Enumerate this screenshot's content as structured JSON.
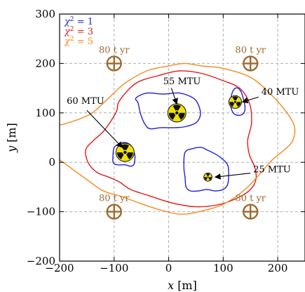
{
  "chart_data": {
    "type": "scatter",
    "xlabel_var": "x",
    "xlabel_unit": "[m]",
    "ylabel_var": "y",
    "ylabel_unit": "[m]",
    "xlim": [
      -200,
      250
    ],
    "ylim": [
      -200,
      300
    ],
    "xticks": [
      -200,
      -100,
      0,
      100,
      200
    ],
    "yticks": [
      -200,
      -100,
      0,
      100,
      200,
      300
    ],
    "xtick_labels": [
      "−200",
      "−100",
      "0",
      "100",
      "200"
    ],
    "ytick_labels": [
      "−200",
      "−100",
      "0",
      "100",
      "200",
      "300"
    ],
    "grid": true,
    "legend": {
      "placement": "top-left",
      "entries": [
        {
          "sym": "χ",
          "exp": "2",
          "rest": " = 1",
          "color": "#1f1fd6"
        },
        {
          "sym": "χ",
          "exp": "2",
          "rest": " = 3",
          "color": "#e01b1b"
        },
        {
          "sym": "χ",
          "exp": "2",
          "rest": " = 5",
          "color": "#f28a1c"
        }
      ]
    },
    "series": [
      {
        "name": "χ² = 1",
        "color": "#1f1fd6",
        "contours": [
          [
            [
              -60,
              130
            ],
            [
              -40,
              140
            ],
            [
              -10,
              138
            ],
            [
              20,
              140
            ],
            [
              45,
              130
            ],
            [
              55,
              115
            ],
            [
              58,
              95
            ],
            [
              50,
              80
            ],
            [
              30,
              72
            ],
            [
              10,
              70
            ],
            [
              -15,
              70
            ],
            [
              -35,
              68
            ],
            [
              -45,
              80
            ],
            [
              -52,
              100
            ],
            [
              -56,
              120
            ],
            [
              -60,
              130
            ]
          ],
          [
            [
              -100,
              30
            ],
            [
              -90,
              38
            ],
            [
              -80,
              40
            ],
            [
              -70,
              35
            ],
            [
              -65,
              25
            ],
            [
              -62,
              15
            ],
            [
              -62,
              5
            ],
            [
              -64,
              -5
            ],
            [
              -70,
              -8
            ],
            [
              -80,
              -5
            ],
            [
              -95,
              -5
            ],
            [
              -102,
              0
            ],
            [
              -102,
              15
            ],
            [
              -100,
              30
            ]
          ],
          [
            [
              115,
              135
            ],
            [
              120,
              148
            ],
            [
              127,
              150
            ],
            [
              133,
              142
            ],
            [
              137,
              128
            ],
            [
              140,
              112
            ],
            [
              138,
              100
            ],
            [
              130,
              95
            ],
            [
              120,
              98
            ],
            [
              115,
              108
            ],
            [
              114,
              120
            ],
            [
              115,
              135
            ]
          ],
          [
            [
              30,
              20
            ],
            [
              45,
              28
            ],
            [
              60,
              30
            ],
            [
              70,
              25
            ],
            [
              80,
              20
            ],
            [
              95,
              10
            ],
            [
              108,
              -5
            ],
            [
              110,
              -25
            ],
            [
              108,
              -45
            ],
            [
              100,
              -55
            ],
            [
              85,
              -58
            ],
            [
              70,
              -55
            ],
            [
              55,
              -58
            ],
            [
              40,
              -58
            ],
            [
              32,
              -50
            ],
            [
              30,
              -30
            ],
            [
              28,
              -10
            ],
            [
              30,
              20
            ]
          ]
        ]
      },
      {
        "name": "χ² = 3",
        "color": "#e01b1b",
        "contours": [
          [
            [
              -90,
              125
            ],
            [
              -60,
              160
            ],
            [
              -20,
              175
            ],
            [
              20,
              185
            ],
            [
              60,
              180
            ],
            [
              100,
              165
            ],
            [
              130,
              150
            ],
            [
              148,
              120
            ],
            [
              152,
              80
            ],
            [
              145,
              45
            ],
            [
              148,
              15
            ],
            [
              158,
              -10
            ],
            [
              160,
              -35
            ],
            [
              150,
              -55
            ],
            [
              130,
              -70
            ],
            [
              95,
              -85
            ],
            [
              50,
              -90
            ],
            [
              5,
              -82
            ],
            [
              -35,
              -68
            ],
            [
              -70,
              -55
            ],
            [
              -90,
              -40
            ],
            [
              -110,
              -30
            ],
            [
              -132,
              -20
            ],
            [
              -148,
              0
            ],
            [
              -152,
              25
            ],
            [
              -140,
              42
            ],
            [
              -120,
              62
            ],
            [
              -105,
              85
            ],
            [
              -95,
              105
            ],
            [
              -90,
              125
            ]
          ]
        ]
      },
      {
        "name": "χ² = 5",
        "color": "#f28a1c",
        "contours": [
          [
            [
              -200,
              75
            ],
            [
              -170,
              85
            ],
            [
              -140,
              100
            ],
            [
              -110,
              130
            ],
            [
              -80,
              160
            ],
            [
              -40,
              185
            ],
            [
              0,
              195
            ],
            [
              30,
              200
            ],
            [
              60,
              195
            ],
            [
              100,
              190
            ],
            [
              150,
              172
            ],
            [
              185,
              140
            ],
            [
              210,
              110
            ],
            [
              230,
              75
            ],
            [
              228,
              45
            ],
            [
              212,
              25
            ],
            [
              190,
              5
            ],
            [
              170,
              -20
            ],
            [
              140,
              -55
            ],
            [
              100,
              -85
            ],
            [
              55,
              -100
            ],
            [
              20,
              -105
            ],
            [
              -20,
              -95
            ],
            [
              -60,
              -80
            ],
            [
              -90,
              -68
            ],
            [
              -110,
              -62
            ],
            [
              -125,
              -55
            ],
            [
              -150,
              -35
            ],
            [
              -175,
              -15
            ],
            [
              -200,
              5
            ]
          ]
        ]
      }
    ],
    "wells": [
      {
        "label": "80 t yr",
        "x": -100,
        "y": 200
      },
      {
        "label": "80 t yr",
        "x": 150,
        "y": 200
      },
      {
        "label": "80 t yr",
        "x": -100,
        "y": -100
      },
      {
        "label": "80 t yr",
        "x": 150,
        "y": -100
      }
    ],
    "sources": [
      {
        "label": "55 MTU",
        "x": 15,
        "y": 100,
        "scale": 1.0,
        "text_x": -10,
        "text_y": 158,
        "arrow_from_x": 5,
        "arrow_from_y": 150,
        "arrow_to_x": 15,
        "arrow_to_y": 118
      },
      {
        "label": "60 MTU",
        "x": -80,
        "y": 20,
        "scale": 1.0,
        "text_x": -187,
        "text_y": 118,
        "arrow_from_x": -150,
        "arrow_from_y": 105,
        "arrow_to_x": -85,
        "arrow_to_y": 30
      },
      {
        "label": "40 MTU",
        "x": 122,
        "y": 122,
        "scale": 0.7,
        "text_x": 170,
        "text_y": 137,
        "arrow_from_x": 165,
        "arrow_from_y": 132,
        "arrow_to_x": 135,
        "arrow_to_y": 122
      },
      {
        "label": "25 MTU",
        "x": 72,
        "y": -30,
        "scale": 0.45,
        "text_x": 155,
        "text_y": -20,
        "arrow_from_x": 150,
        "arrow_from_y": -22,
        "arrow_to_x": 85,
        "arrow_to_y": -30
      }
    ],
    "colors": {
      "well": "#9e6a2e",
      "grid": "#b0b0b0",
      "trefoil_bg": "#f0e010",
      "trefoil_fg": "#111111"
    }
  }
}
